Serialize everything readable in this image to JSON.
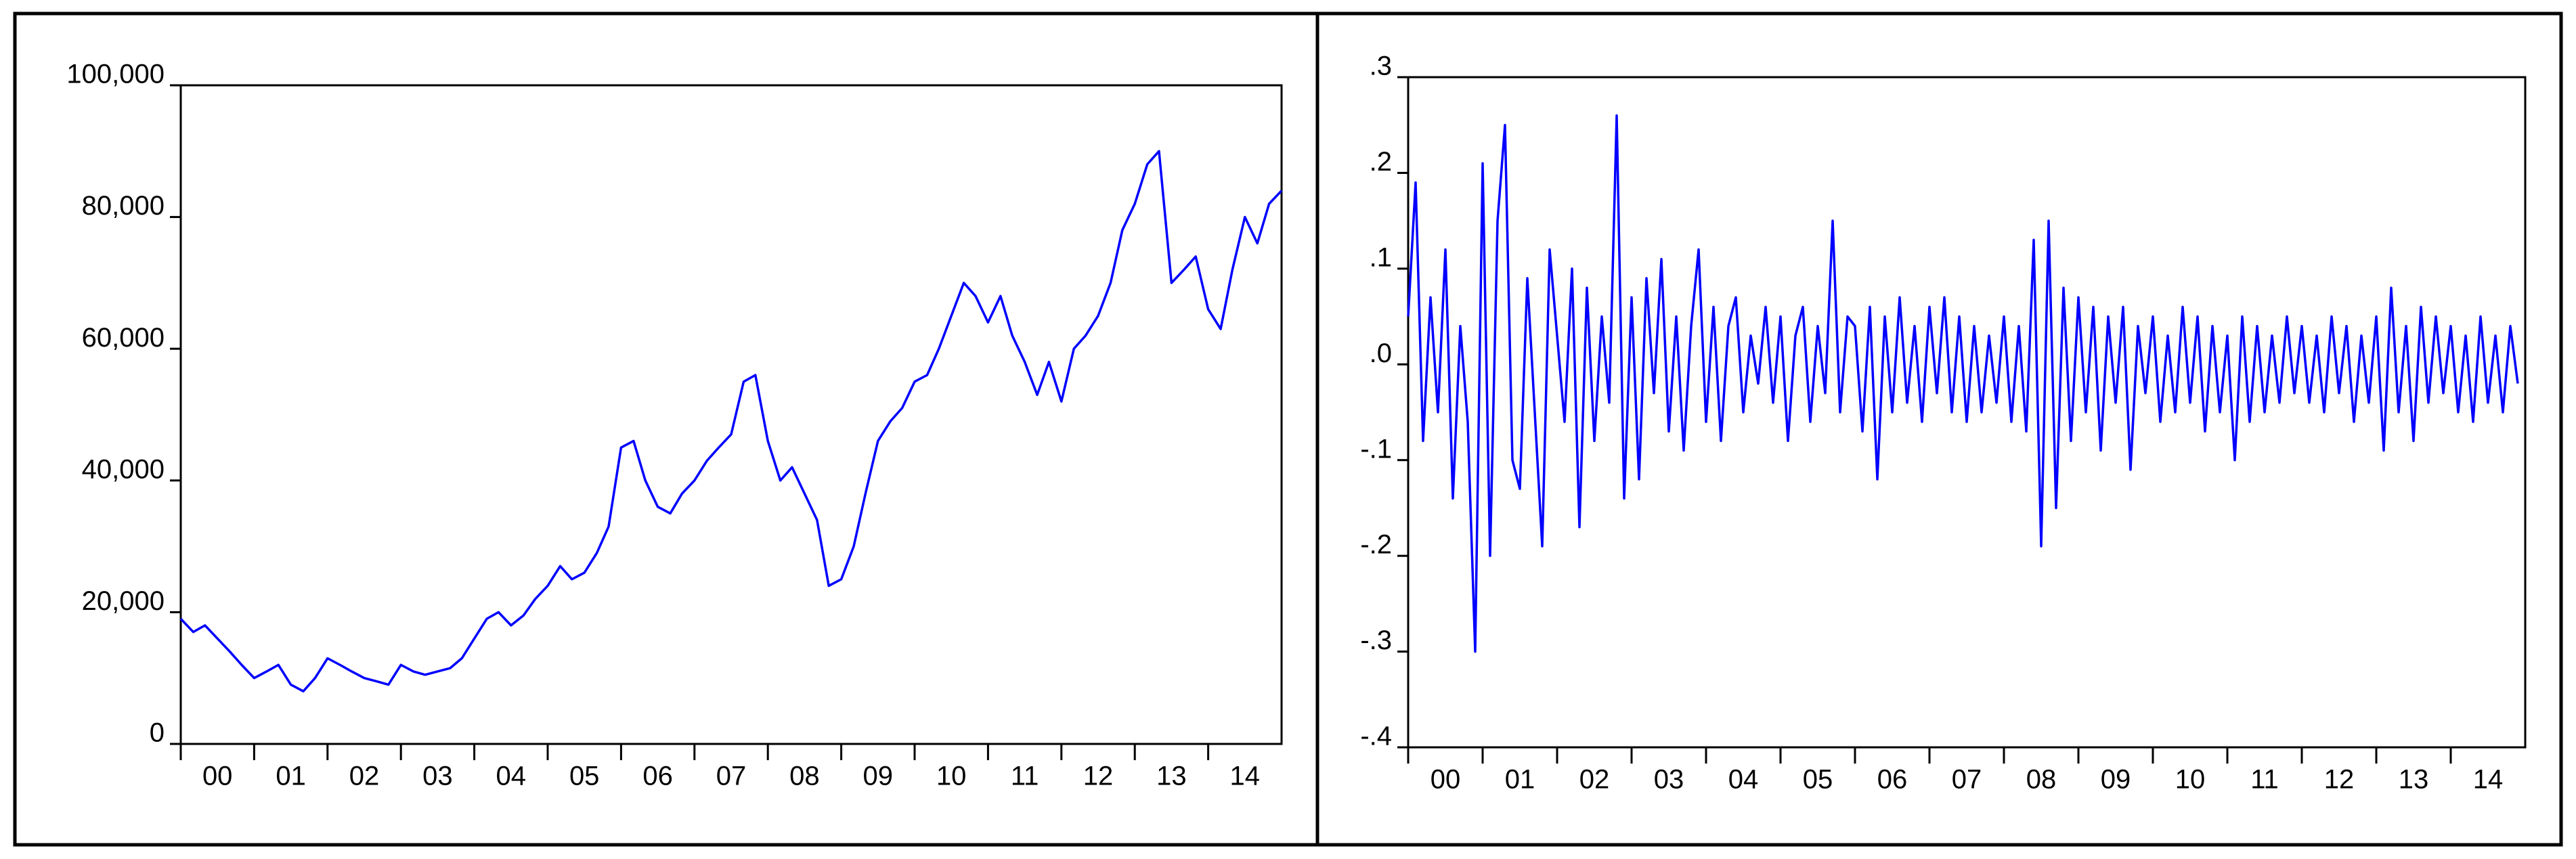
{
  "chart_data": [
    {
      "type": "line",
      "x": [
        0,
        0.17,
        0.33,
        0.5,
        0.67,
        0.83,
        1,
        1.17,
        1.33,
        1.5,
        1.67,
        1.83,
        2,
        2.17,
        2.33,
        2.5,
        2.67,
        2.83,
        3,
        3.17,
        3.33,
        3.5,
        3.67,
        3.83,
        4,
        4.17,
        4.33,
        4.5,
        4.67,
        4.83,
        5,
        5.17,
        5.33,
        5.5,
        5.67,
        5.83,
        6,
        6.17,
        6.33,
        6.5,
        6.67,
        6.83,
        7,
        7.17,
        7.33,
        7.5,
        7.67,
        7.83,
        8,
        8.17,
        8.33,
        8.5,
        8.67,
        8.83,
        9,
        9.17,
        9.33,
        9.5,
        9.67,
        9.83,
        10,
        10.17,
        10.33,
        10.5,
        10.67,
        10.83,
        11,
        11.17,
        11.33,
        11.5,
        11.67,
        11.83,
        12,
        12.17,
        12.33,
        12.5,
        12.67,
        12.83,
        13,
        13.17,
        13.33,
        13.5,
        13.67,
        13.83,
        14,
        14.17,
        14.33,
        14.5,
        14.67,
        14.83,
        15
      ],
      "series": [
        {
          "color": "#0000ff",
          "values": [
            19000,
            17000,
            18000,
            16000,
            14000,
            12000,
            10000,
            11000,
            12000,
            9000,
            8000,
            10000,
            13000,
            12000,
            11000,
            10000,
            9500,
            9000,
            12000,
            11000,
            10500,
            11000,
            11500,
            13000,
            16000,
            19000,
            20000,
            18000,
            19500,
            22000,
            24000,
            27000,
            25000,
            26000,
            29000,
            33000,
            45000,
            46000,
            40000,
            36000,
            35000,
            38000,
            40000,
            43000,
            45000,
            47000,
            55000,
            56000,
            46000,
            40000,
            42000,
            38000,
            34000,
            24000,
            25000,
            30000,
            38000,
            46000,
            49000,
            51000,
            55000,
            56000,
            60000,
            65000,
            70000,
            68000,
            64000,
            68000,
            62000,
            58000,
            53000,
            58000,
            52000,
            60000,
            62000,
            65000,
            70000,
            78000,
            82000,
            88000,
            90000,
            70000,
            72000,
            74000,
            66000,
            63000,
            72000,
            80000,
            76000,
            82000,
            84000
          ]
        }
      ],
      "xlim": [
        0,
        15
      ],
      "xticks": [
        {
          "value": 0,
          "label": "00"
        },
        {
          "value": 1,
          "label": "01"
        },
        {
          "value": 2,
          "label": "02"
        },
        {
          "value": 3,
          "label": "03"
        },
        {
          "value": 4,
          "label": "04"
        },
        {
          "value": 5,
          "label": "05"
        },
        {
          "value": 6,
          "label": "06"
        },
        {
          "value": 7,
          "label": "07"
        },
        {
          "value": 8,
          "label": "08"
        },
        {
          "value": 9,
          "label": "09"
        },
        {
          "value": 10,
          "label": "10"
        },
        {
          "value": 11,
          "label": "11"
        },
        {
          "value": 12,
          "label": "12"
        },
        {
          "value": 13,
          "label": "13"
        },
        {
          "value": 14,
          "label": "14"
        }
      ],
      "ylim": [
        0,
        100000
      ],
      "yticks": [
        0,
        {
          "value": 20000,
          "label": "20,000"
        },
        {
          "value": 40000,
          "label": "40,000"
        },
        {
          "value": 60000,
          "label": "60,000"
        },
        {
          "value": 80000,
          "label": "80,000"
        },
        {
          "value": 100000,
          "label": "100,000"
        }
      ]
    },
    {
      "type": "line",
      "x": [
        0,
        0.1,
        0.2,
        0.3,
        0.4,
        0.5,
        0.6,
        0.7,
        0.8,
        0.9,
        1,
        1.1,
        1.2,
        1.3,
        1.4,
        1.5,
        1.6,
        1.7,
        1.8,
        1.9,
        2,
        2.1,
        2.2,
        2.3,
        2.4,
        2.5,
        2.6,
        2.7,
        2.8,
        2.9,
        3,
        3.1,
        3.2,
        3.3,
        3.4,
        3.5,
        3.6,
        3.7,
        3.8,
        3.9,
        4,
        4.1,
        4.2,
        4.3,
        4.4,
        4.5,
        4.6,
        4.7,
        4.8,
        4.9,
        5,
        5.1,
        5.2,
        5.3,
        5.4,
        5.5,
        5.6,
        5.7,
        5.8,
        5.9,
        6,
        6.1,
        6.2,
        6.3,
        6.4,
        6.5,
        6.6,
        6.7,
        6.8,
        6.9,
        7,
        7.1,
        7.2,
        7.3,
        7.4,
        7.5,
        7.6,
        7.7,
        7.8,
        7.9,
        8,
        8.1,
        8.2,
        8.3,
        8.4,
        8.5,
        8.6,
        8.7,
        8.8,
        8.9,
        9,
        9.1,
        9.2,
        9.3,
        9.4,
        9.5,
        9.6,
        9.7,
        9.8,
        9.9,
        10,
        10.1,
        10.2,
        10.3,
        10.4,
        10.5,
        10.6,
        10.7,
        10.8,
        10.9,
        11,
        11.1,
        11.2,
        11.3,
        11.4,
        11.5,
        11.6,
        11.7,
        11.8,
        11.9,
        12,
        12.1,
        12.2,
        12.3,
        12.4,
        12.5,
        12.6,
        12.7,
        12.8,
        12.9,
        13,
        13.1,
        13.2,
        13.3,
        13.4,
        13.5,
        13.6,
        13.7,
        13.8,
        13.9,
        14,
        14.1,
        14.2,
        14.3,
        14.4,
        14.5,
        14.6,
        14.7,
        14.8,
        14.9
      ],
      "series": [
        {
          "color": "#0000ff",
          "values": [
            0.05,
            0.19,
            -0.08,
            0.07,
            -0.05,
            0.12,
            -0.14,
            0.04,
            -0.06,
            -0.3,
            0.21,
            -0.2,
            0.15,
            0.25,
            -0.1,
            -0.13,
            0.09,
            -0.05,
            -0.19,
            0.12,
            0.03,
            -0.06,
            0.1,
            -0.17,
            0.08,
            -0.08,
            0.05,
            -0.04,
            0.26,
            -0.14,
            0.07,
            -0.12,
            0.09,
            -0.03,
            0.11,
            -0.07,
            0.05,
            -0.09,
            0.04,
            0.12,
            -0.06,
            0.06,
            -0.08,
            0.04,
            0.07,
            -0.05,
            0.03,
            -0.02,
            0.06,
            -0.04,
            0.05,
            -0.08,
            0.03,
            0.06,
            -0.06,
            0.04,
            -0.03,
            0.15,
            -0.05,
            0.05,
            0.04,
            -0.07,
            0.06,
            -0.12,
            0.05,
            -0.05,
            0.07,
            -0.04,
            0.04,
            -0.06,
            0.06,
            -0.03,
            0.07,
            -0.05,
            0.05,
            -0.06,
            0.04,
            -0.05,
            0.03,
            -0.04,
            0.05,
            -0.06,
            0.04,
            -0.07,
            0.13,
            -0.19,
            0.15,
            -0.15,
            0.08,
            -0.08,
            0.07,
            -0.05,
            0.06,
            -0.09,
            0.05,
            -0.04,
            0.06,
            -0.11,
            0.04,
            -0.03,
            0.05,
            -0.06,
            0.03,
            -0.05,
            0.06,
            -0.04,
            0.05,
            -0.07,
            0.04,
            -0.05,
            0.03,
            -0.1,
            0.05,
            -0.06,
            0.04,
            -0.05,
            0.03,
            -0.04,
            0.05,
            -0.03,
            0.04,
            -0.04,
            0.03,
            -0.05,
            0.05,
            -0.03,
            0.04,
            -0.06,
            0.03,
            -0.04,
            0.05,
            -0.09,
            0.08,
            -0.05,
            0.04,
            -0.08,
            0.06,
            -0.04,
            0.05,
            -0.03,
            0.04,
            -0.05,
            0.03,
            -0.06,
            0.05,
            -0.04,
            0.03,
            -0.05,
            0.04,
            -0.02
          ]
        }
      ],
      "xlim": [
        0,
        15
      ],
      "xticks": [
        {
          "value": 0,
          "label": "00"
        },
        {
          "value": 1,
          "label": "01"
        },
        {
          "value": 2,
          "label": "02"
        },
        {
          "value": 3,
          "label": "03"
        },
        {
          "value": 4,
          "label": "04"
        },
        {
          "value": 5,
          "label": "05"
        },
        {
          "value": 6,
          "label": "06"
        },
        {
          "value": 7,
          "label": "07"
        },
        {
          "value": 8,
          "label": "08"
        },
        {
          "value": 9,
          "label": "09"
        },
        {
          "value": 10,
          "label": "10"
        },
        {
          "value": 11,
          "label": "11"
        },
        {
          "value": 12,
          "label": "12"
        },
        {
          "value": 13,
          "label": "13"
        },
        {
          "value": 14,
          "label": "14"
        }
      ],
      "ylim": [
        -0.4,
        0.3
      ],
      "yticks": [
        {
          "value": -0.4,
          "label": "-.4"
        },
        {
          "value": -0.3,
          "label": "-.3"
        },
        {
          "value": -0.2,
          "label": "-.2"
        },
        {
          "value": -0.1,
          "label": "-.1"
        },
        {
          "value": 0,
          "label": ".0"
        },
        {
          "value": 0.1,
          "label": ".1"
        },
        {
          "value": 0.2,
          "label": ".2"
        },
        {
          "value": 0.3,
          "label": ".3"
        }
      ]
    }
  ]
}
